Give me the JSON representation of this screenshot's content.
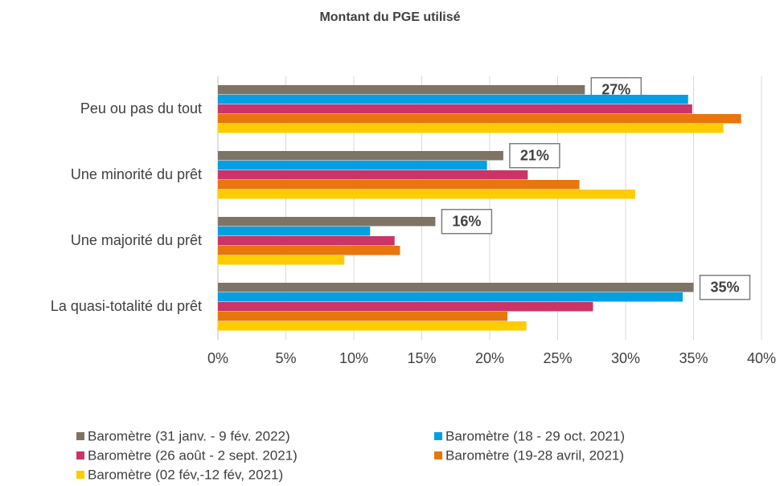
{
  "chart_data": {
    "type": "bar",
    "orientation": "horizontal",
    "title": "Montant du PGE utilisé",
    "categories": [
      "Peu ou pas du tout",
      "Une minorité du prêt",
      "Une majorité du prêt",
      "La quasi-totalité du prêt"
    ],
    "series": [
      {
        "name": "Baromètre (31 janv. - 9 fév. 2022)",
        "color": "#7f7366",
        "values": [
          27,
          21,
          16,
          35
        ],
        "value_labels": [
          "27%",
          "21%",
          "16%",
          "35%"
        ]
      },
      {
        "name": "Baromètre (18 - 29 oct. 2021)",
        "color": "#00a0e3",
        "values": [
          34.6,
          19.8,
          11.2,
          34.2
        ]
      },
      {
        "name": "Baromètre (26 août - 2 sept. 2021)",
        "color": "#cc3366",
        "values": [
          34.9,
          22.8,
          13.0,
          27.6
        ]
      },
      {
        "name": "Baromètre (19-28 avril, 2021)",
        "color": "#e8760a",
        "values": [
          38.5,
          26.6,
          13.4,
          21.3
        ]
      },
      {
        "name": "Baromètre (02 fév,-12 fév, 2021)",
        "color": "#ffcc00",
        "values": [
          37.2,
          30.7,
          9.3,
          22.7
        ]
      }
    ],
    "xlim": [
      0,
      40
    ],
    "xticks": [
      {
        "value": 0,
        "label": "0%"
      },
      {
        "value": 5,
        "label": "5%"
      },
      {
        "value": 10,
        "label": "10%"
      },
      {
        "value": 15,
        "label": "15%"
      },
      {
        "value": 20,
        "label": "20%"
      },
      {
        "value": 25,
        "label": "25%"
      },
      {
        "value": 30,
        "label": "30%"
      },
      {
        "value": 35,
        "label": "35%"
      },
      {
        "value": 40,
        "label": "40%"
      }
    ],
    "grid": true,
    "legend": "bottom"
  }
}
